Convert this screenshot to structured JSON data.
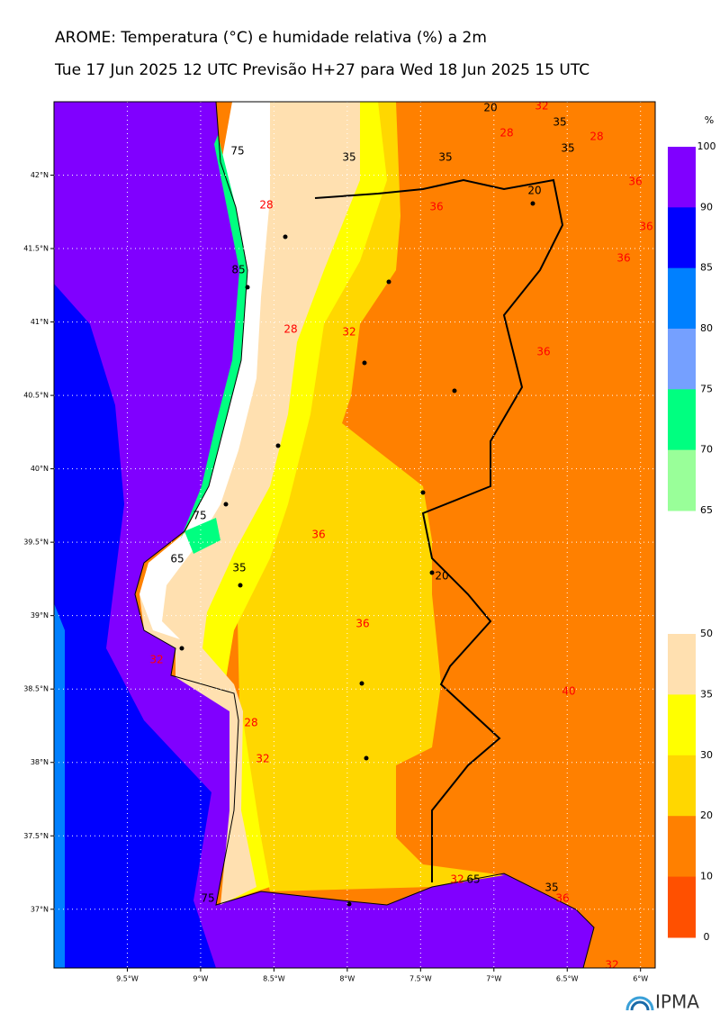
{
  "header": {
    "title": "AROME: Temperatura (°C) e humidade relativa (%) a 2m",
    "subtitle": "Tue 17 Jun 2025 12 UTC Previsão H+27 para Wed 18 Jun 2025 15 UTC"
  },
  "map": {
    "xlim": [
      -10,
      -5.9
    ],
    "ylim": [
      36.6,
      42.5
    ],
    "xticks": [
      {
        "value": -9.5,
        "label": "9.5°W"
      },
      {
        "value": -9,
        "label": "9°W"
      },
      {
        "value": -8.5,
        "label": "8.5°W"
      },
      {
        "value": -8,
        "label": "8°W"
      },
      {
        "value": -7.5,
        "label": "7.5°W"
      },
      {
        "value": -7,
        "label": "7°W"
      },
      {
        "value": -6.5,
        "label": "6.5°W"
      },
      {
        "value": -6,
        "label": "6°W"
      }
    ],
    "yticks": [
      {
        "value": 42,
        "label": "42°N"
      },
      {
        "value": 41.5,
        "label": "41.5°N"
      },
      {
        "value": 41,
        "label": "41°N"
      },
      {
        "value": 40.5,
        "label": "40.5°N"
      },
      {
        "value": 40,
        "label": "40°N"
      },
      {
        "value": 39.5,
        "label": "39.5°N"
      },
      {
        "value": 39,
        "label": "39°N"
      },
      {
        "value": 38.5,
        "label": "38.5°N"
      },
      {
        "value": 38,
        "label": "38°N"
      },
      {
        "value": 37.5,
        "label": "37.5°N"
      },
      {
        "value": 37,
        "label": "37°N"
      }
    ],
    "grid": true,
    "contour_labels": [
      {
        "value": 20,
        "color": "#000000"
      },
      {
        "value": 32,
        "color": "#ff0000"
      },
      {
        "value": 28,
        "color": "#ff0000"
      },
      {
        "value": 35,
        "color": "#000000"
      },
      {
        "value": 35,
        "color": "#000000"
      },
      {
        "value": 28,
        "color": "#ff0000"
      },
      {
        "value": 36,
        "color": "#ff0000"
      },
      {
        "value": 20,
        "color": "#000000"
      },
      {
        "value": 35,
        "color": "#000000"
      },
      {
        "value": 35,
        "color": "#000000"
      },
      {
        "value": 36,
        "color": "#ff0000"
      },
      {
        "value": 28,
        "color": "#ff0000"
      },
      {
        "value": 36,
        "color": "#ff0000"
      },
      {
        "value": 36,
        "color": "#ff0000"
      },
      {
        "value": 75,
        "color": "#000000"
      },
      {
        "value": 85,
        "color": "#000000"
      },
      {
        "value": 28,
        "color": "#ff0000"
      },
      {
        "value": 32,
        "color": "#ff0000"
      },
      {
        "value": 36,
        "color": "#ff0000"
      },
      {
        "value": 75,
        "color": "#000000"
      },
      {
        "value": 65,
        "color": "#000000"
      },
      {
        "value": 36,
        "color": "#ff0000"
      },
      {
        "value": 35,
        "color": "#000000"
      },
      {
        "value": 20,
        "color": "#000000"
      },
      {
        "value": 36,
        "color": "#ff0000"
      },
      {
        "value": 40,
        "color": "#ff0000"
      },
      {
        "value": 28,
        "color": "#ff0000"
      },
      {
        "value": 32,
        "color": "#ff0000"
      },
      {
        "value": 32,
        "color": "#ff0000"
      },
      {
        "value": 65,
        "color": "#000000"
      },
      {
        "value": 35,
        "color": "#000000"
      },
      {
        "value": 36,
        "color": "#ff0000"
      },
      {
        "value": 32,
        "color": "#ff0000"
      },
      {
        "value": 75,
        "color": "#000000"
      },
      {
        "value": 32,
        "color": "#ff0000"
      }
    ]
  },
  "colorbars": [
    {
      "unit": "%",
      "ticks": [
        100,
        90,
        85,
        80,
        75,
        70,
        65
      ],
      "colors": [
        "#8000ff",
        "#0000ff",
        "#0080ff",
        "#75a0ff",
        "#00ff80",
        "#99ff99"
      ]
    },
    {
      "ticks": [
        50,
        35,
        30,
        20,
        10,
        0
      ],
      "colors": [
        "#ffe0b0",
        "#ffff00",
        "#ffd700",
        "#ff8000",
        "#ff5000"
      ]
    }
  ],
  "logo": "IPMA"
}
